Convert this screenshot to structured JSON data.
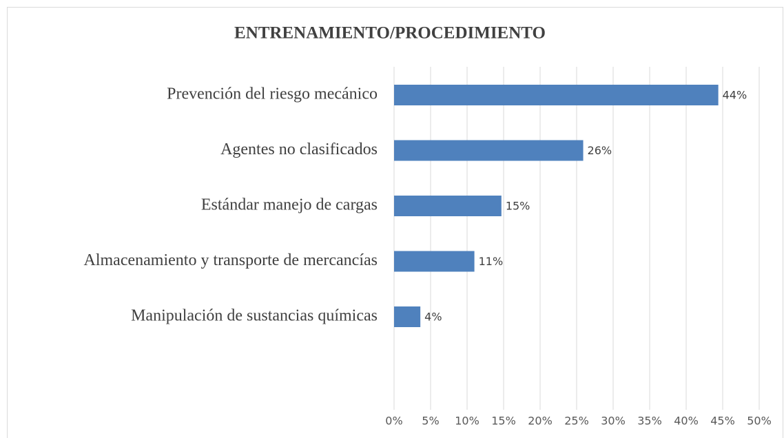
{
  "chart_data": {
    "type": "bar",
    "orientation": "horizontal",
    "title": "ENTRENAMIENTO/PROCEDIMIENTO",
    "categories": [
      "Prevención del riesgo mecánico",
      "Agentes no clasificados",
      "Estándar manejo de cargas",
      "Almacenamiento y transporte de mercancías",
      "Manipulación de sustancias químicas"
    ],
    "values": [
      44.4,
      25.9,
      14.7,
      11.0,
      3.6
    ],
    "value_labels": [
      "44%",
      "26%",
      "15%",
      "11%",
      "4%"
    ],
    "color": "#4f81bd",
    "xlim": [
      0,
      50
    ],
    "xticks": [
      {
        "value": 0,
        "label": "0%"
      },
      {
        "value": 5,
        "label": "5%"
      },
      {
        "value": 10,
        "label": "10%"
      },
      {
        "value": 15,
        "label": "15%"
      },
      {
        "value": 20,
        "label": "20%"
      },
      {
        "value": 25,
        "label": "25%"
      },
      {
        "value": 30,
        "label": "30%"
      },
      {
        "value": 35,
        "label": "35%"
      },
      {
        "value": 40,
        "label": "40%"
      },
      {
        "value": 45,
        "label": "45%"
      },
      {
        "value": 50,
        "label": "50%"
      }
    ],
    "grid": true
  }
}
